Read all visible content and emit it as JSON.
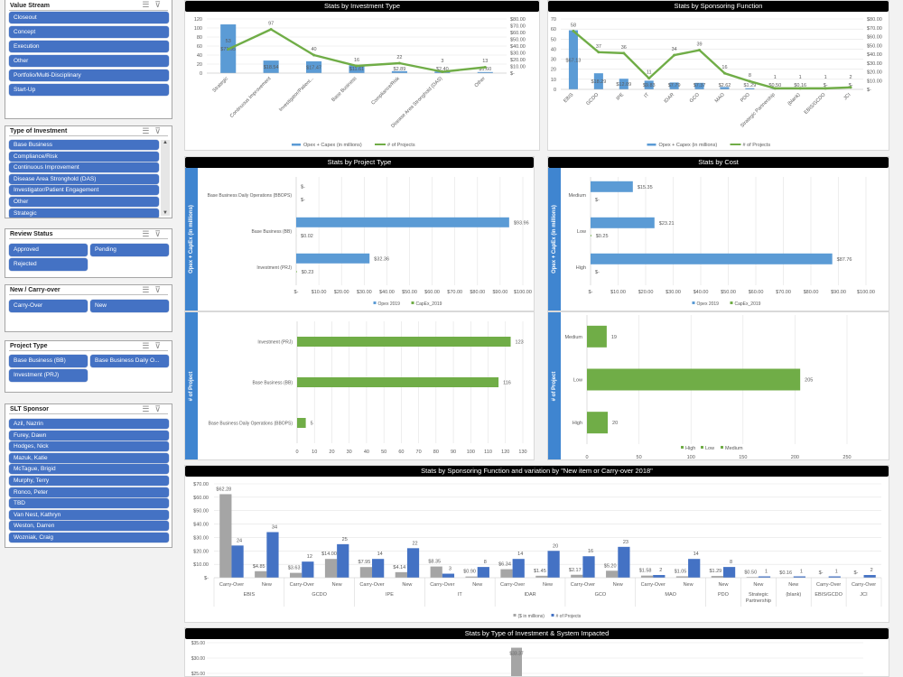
{
  "slicers": [
    {
      "title": "Value Stream",
      "items": [
        "Closeout",
        "Concept",
        "Execution",
        "Other",
        "Portfolio/Multi-Disciplinary",
        "Start-Up"
      ]
    },
    {
      "title": "Type of Investment",
      "items": [
        "Base Business",
        "Compliance/Risk",
        "Continuous Improvement",
        "Disease Area Stronghold (DAS)",
        "Investigator/Patient Engagement",
        "Other",
        "Strategic"
      ]
    },
    {
      "title": "Review Status",
      "items": [
        "Approved",
        "Pending",
        "Rejected"
      ]
    },
    {
      "title": "New / Carry-over",
      "items": [
        "Carry-Over",
        "New"
      ]
    },
    {
      "title": "Project Type",
      "items": [
        "Base Business (BB)",
        "Base Business Daily O...",
        "Investment (PRJ)"
      ]
    },
    {
      "title": "SLT Sponsor",
      "items": [
        "Azil, Nazrin",
        "Furey, Dawn",
        "Hodges, Nick",
        "Mazuk, Katie",
        "McTague, Brigid",
        "Murphy, Terry",
        "Ronco, Peter",
        "TBD",
        "Van Nest, Kathryn",
        "Weston, Darren",
        "Wozniak, Craig"
      ]
    }
  ],
  "slicer_icons": {
    "multi_select": "multi-select-icon",
    "clear_filter": "clear-filter-icon"
  },
  "colors": {
    "slicer_button": "#4472c4",
    "bar_blue": "#5b9bd5",
    "line_green": "#70ad47",
    "bar_gray": "#a5a5a5",
    "bar_darkblue": "#4472c4",
    "title_bar": "#000000"
  },
  "chart_data": [
    {
      "type": "bar+line",
      "title": "Stats by Investment Type",
      "categories": [
        "Strategic",
        "Continuous Improvement",
        "Investigator/Patient...",
        "Base Business",
        "Compliance/Risk",
        "Disease Area Stronghold (DAS)",
        "Other"
      ],
      "series": [
        {
          "name": "Opex + Capex (in millions)",
          "type": "bar",
          "axis": "right",
          "values": [
            71.95,
            18.54,
            17.47,
            11.61,
            2.89,
            2.4,
            1.6
          ]
        },
        {
          "name": "# of Projects",
          "type": "line",
          "axis": "left",
          "values": [
            53,
            97,
            40,
            16,
            22,
            3,
            13
          ]
        }
      ],
      "left_axis": {
        "min": 0,
        "max": 120,
        "step": 20
      },
      "right_axis": {
        "min": 0,
        "max": 80,
        "step": 10
      },
      "legend": "bottom",
      "grid": true
    },
    {
      "type": "bar+line",
      "title": "Stats by Sponsoring Function",
      "categories": [
        "EBIS",
        "GCDO",
        "IPE",
        "IT",
        "IDAR",
        "GCO",
        "MAO",
        "PDO",
        "Strategic Partnership",
        "(blank)",
        "EBIS/GCDO",
        "JCI"
      ],
      "series": [
        {
          "name": "Opex + Capex (in millions)",
          "type": "bar",
          "axis": "right",
          "values": [
            67.13,
            18.29,
            12.09,
            9.83,
            7.79,
            7.37,
            2.62,
            1.29,
            0.5,
            0.16,
            0,
            0
          ]
        },
        {
          "name": "# of Projects",
          "type": "line",
          "axis": "left",
          "values": [
            58,
            37,
            36,
            11,
            34,
            39,
            16,
            8,
            1,
            1,
            1,
            2
          ]
        }
      ],
      "left_axis": {
        "min": 0,
        "max": 70,
        "step": 10
      },
      "right_axis": {
        "min": 0,
        "max": 80,
        "step": 10
      },
      "legend": "bottom",
      "grid": true
    },
    {
      "type": "hbar",
      "title": "Stats by Project Type",
      "ylabel": "Opex + CapEx (in millions)",
      "categories": [
        "Base Business Daily Operations (BBOPS)",
        "Base Business (BB)",
        "Investment (PRJ)"
      ],
      "series": [
        {
          "name": "Opex 2019",
          "values": [
            0.0,
            93.96,
            32.36
          ]
        },
        {
          "name": "CapEx_2019",
          "values": [
            0,
            0.02,
            0.23
          ]
        }
      ],
      "xlim": [
        0,
        100
      ],
      "step": 10,
      "currency": true,
      "legend": "bottom"
    },
    {
      "type": "hbar",
      "title": "Stats by Cost",
      "ylabel": "Opex + CapEx (in millions)",
      "categories": [
        "Medium",
        "Low",
        "High"
      ],
      "series": [
        {
          "name": "Opex 2019",
          "values": [
            15.35,
            23.21,
            87.76
          ]
        },
        {
          "name": "CapEx_2019",
          "values": [
            0,
            0.25,
            0
          ]
        }
      ],
      "xlim": [
        0,
        100
      ],
      "step": 10,
      "currency": true,
      "legend": "bottom"
    },
    {
      "type": "hbar",
      "ylabel": "# of Project",
      "categories": [
        "Investment (PRJ)",
        "Base Business (BB)",
        "Base Business Daily Operations (BBOPS)"
      ],
      "series": [
        {
          "values": [
            123,
            116,
            5
          ]
        }
      ],
      "xlim": [
        0,
        130
      ],
      "step": 10,
      "currency": false
    },
    {
      "type": "hbar",
      "ylabel": "# of Project",
      "categories": [
        "Medium",
        "Low",
        "High"
      ],
      "series": [
        {
          "values": [
            19,
            205,
            20
          ]
        }
      ],
      "legend_entries": [
        "High",
        "Low",
        "Medium"
      ],
      "xlim": [
        0,
        250
      ],
      "step": 50,
      "currency": false
    },
    {
      "type": "grouped_bar",
      "title": "Stats by Sponsoring Function and variation by \"New item or Carry-over 2018\"",
      "groups": [
        {
          "name": "EBIS",
          "items": [
            {
              "sub": "Carry-Over",
              "cost": 62.28,
              "projects": 24
            },
            {
              "sub": "New",
              "cost": 4.85,
              "projects": 34
            }
          ]
        },
        {
          "name": "GCDO",
          "items": [
            {
              "sub": "Carry-Over",
              "cost": 3.63,
              "projects": 12
            },
            {
              "sub": "New",
              "cost": 14.0,
              "projects": 25
            }
          ]
        },
        {
          "name": "IPE",
          "items": [
            {
              "sub": "Carry-Over",
              "cost": 7.95,
              "projects": 14
            },
            {
              "sub": "New",
              "cost": 4.14,
              "projects": 22
            }
          ]
        },
        {
          "name": "IT",
          "items": [
            {
              "sub": "Carry-Over",
              "cost": 8.35,
              "projects": 3
            },
            {
              "sub": "New",
              "cost": 0.9,
              "projects": 8
            }
          ]
        },
        {
          "name": "IDAR",
          "items": [
            {
              "sub": "Carry-Over",
              "cost": 6.34,
              "projects": 14
            },
            {
              "sub": "New",
              "cost": 1.45,
              "projects": 20
            }
          ]
        },
        {
          "name": "GCO",
          "items": [
            {
              "sub": "Carry-Over",
              "cost": 2.17,
              "projects": 16
            },
            {
              "sub": "New",
              "cost": 5.2,
              "projects": 23
            }
          ]
        },
        {
          "name": "MAO",
          "items": [
            {
              "sub": "Carry-Over",
              "cost": 1.58,
              "projects": 2
            },
            {
              "sub": "New",
              "cost": 1.05,
              "projects": 14
            }
          ]
        },
        {
          "name": "PDO",
          "items": [
            {
              "sub": "New",
              "cost": 1.29,
              "projects": 8
            }
          ]
        },
        {
          "name": "Strategic Partnership",
          "items": [
            {
              "sub": "New",
              "cost": 0.5,
              "projects": 1
            }
          ]
        },
        {
          "name": "(blank)",
          "items": [
            {
              "sub": "New",
              "cost": 0.16,
              "projects": 1
            }
          ]
        },
        {
          "name": "EBIS/GCDO",
          "items": [
            {
              "sub": "Carry-Over",
              "cost": 0,
              "projects": 1
            }
          ]
        },
        {
          "name": "JCI",
          "items": [
            {
              "sub": "Carry-Over",
              "cost": 0,
              "projects": 2
            }
          ]
        }
      ],
      "series_names": [
        "($ in millions)",
        "# of Projects"
      ],
      "ylim": [
        0,
        70
      ],
      "step": 10,
      "legend": "bottom"
    },
    {
      "type": "bar",
      "title": "Stats by Type of Investment & System Impacted",
      "visible_ticks": [
        35,
        30,
        25
      ],
      "values": [
        33.37
      ]
    }
  ]
}
